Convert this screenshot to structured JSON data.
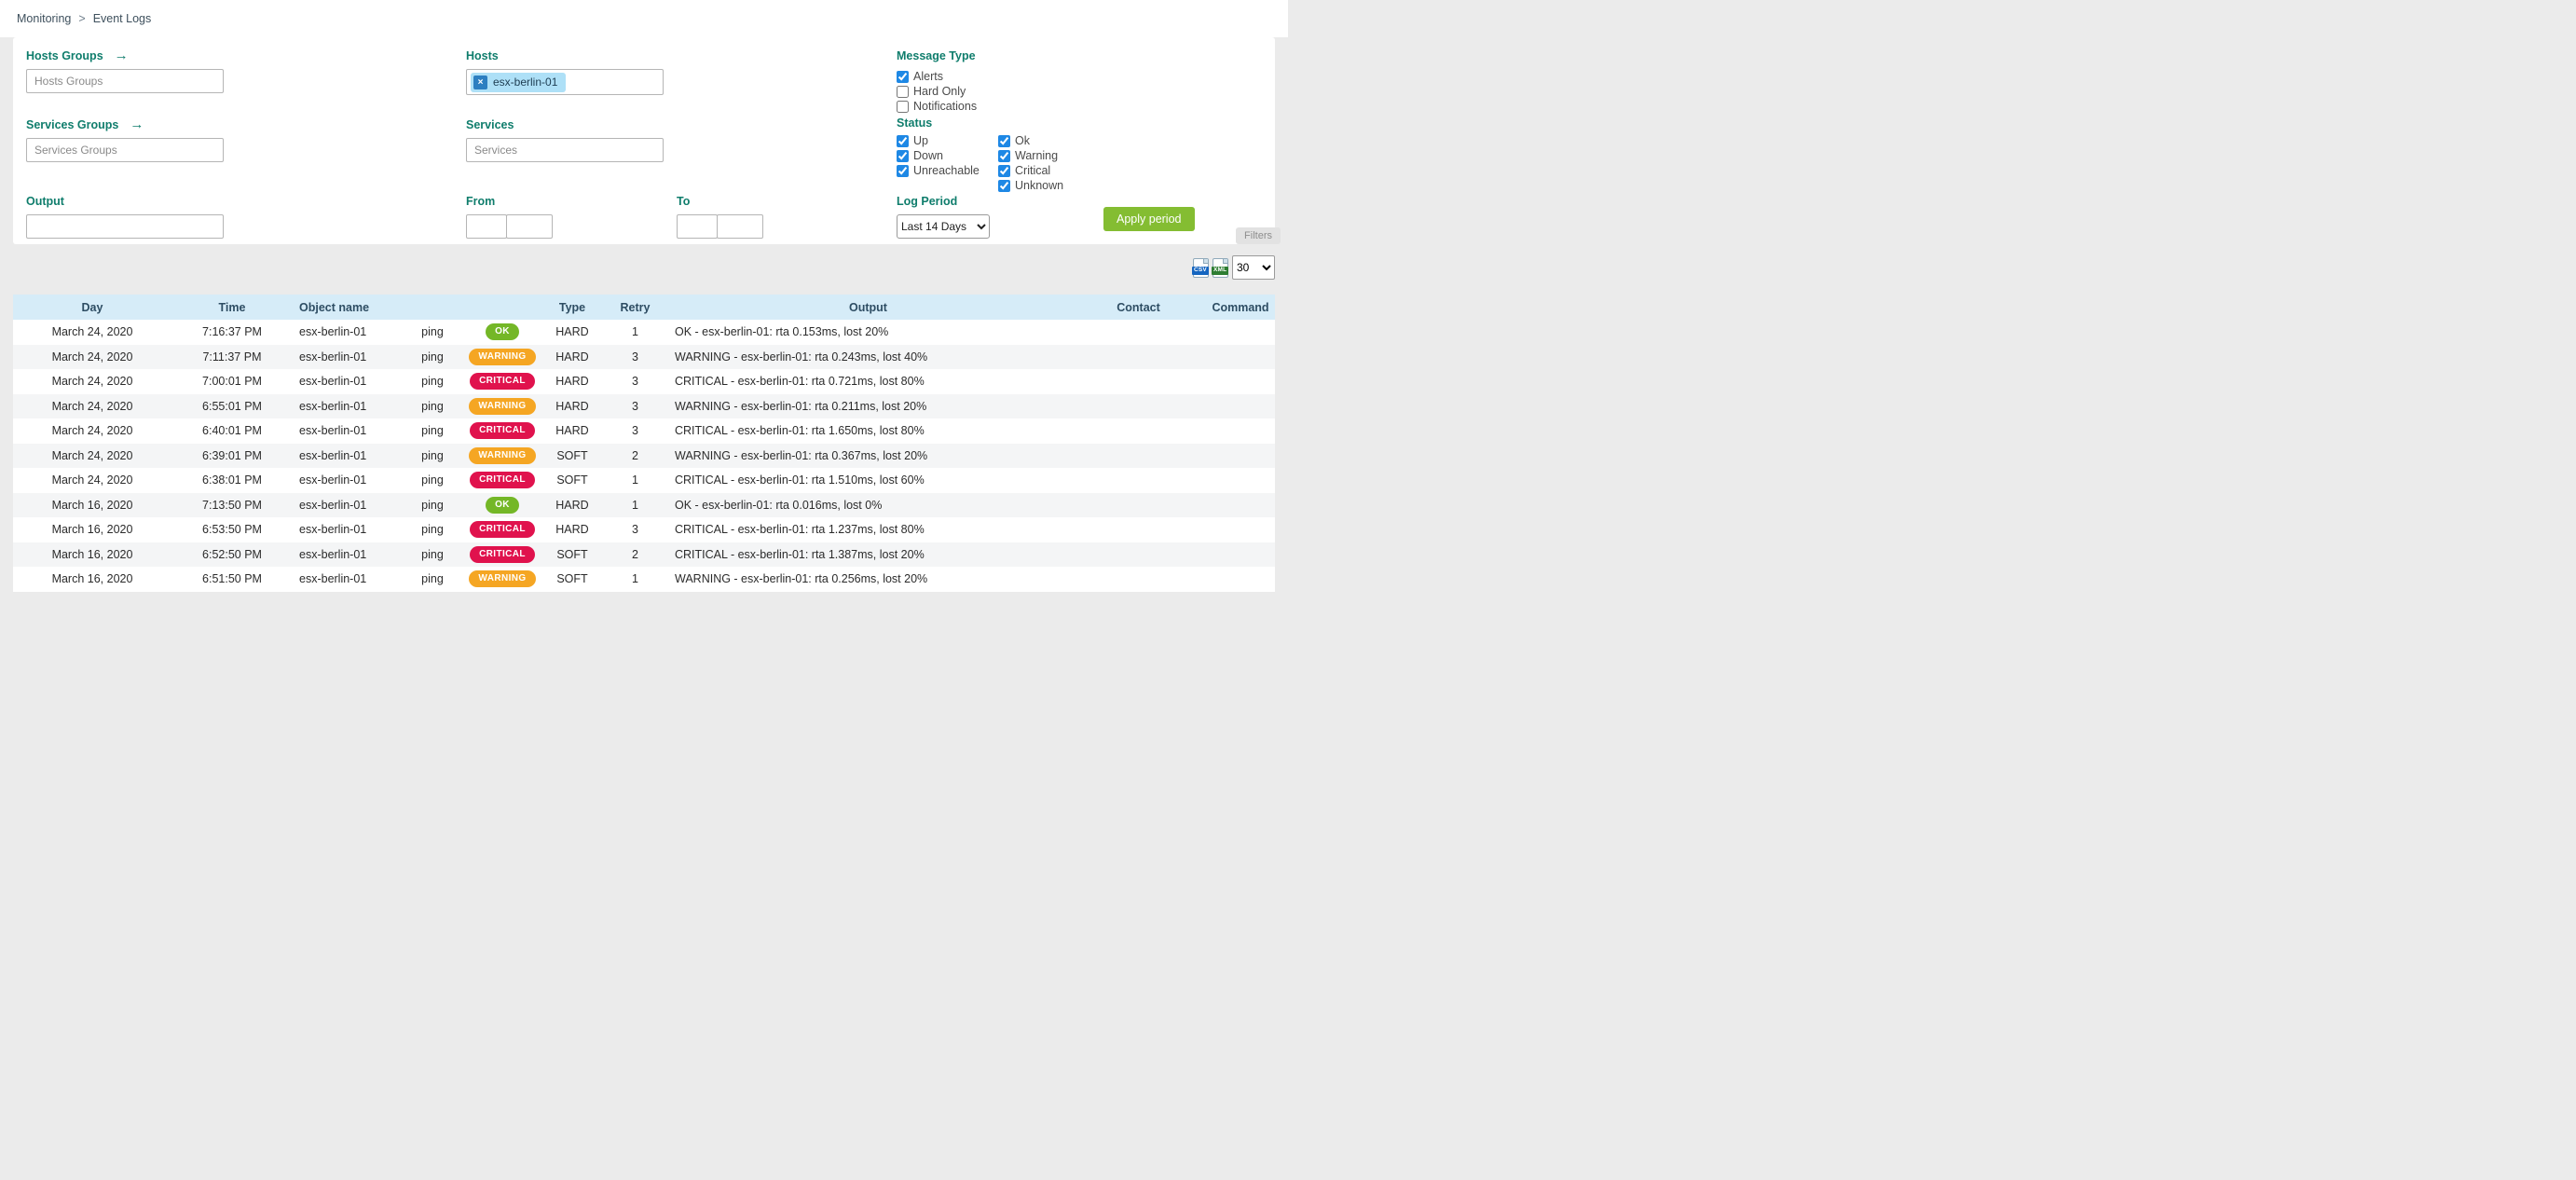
{
  "breadcrumb": {
    "items": [
      "Monitoring",
      "Event Logs"
    ],
    "separator": ">"
  },
  "filters": {
    "caption": "Filters",
    "hosts_groups": {
      "label": "Hosts Groups",
      "placeholder": "Hosts Groups"
    },
    "services_groups": {
      "label": "Services Groups",
      "placeholder": "Services Groups"
    },
    "hosts": {
      "label": "Hosts",
      "chips": [
        {
          "label": "esx-berlin-01",
          "remove_glyph": "×"
        }
      ]
    },
    "services": {
      "label": "Services",
      "placeholder": "Services"
    },
    "output": {
      "label": "Output",
      "value": ""
    },
    "from": {
      "label": "From",
      "date_value": "",
      "time_value": ""
    },
    "to": {
      "label": "To",
      "date_value": "",
      "time_value": ""
    },
    "message_type": {
      "label": "Message Type",
      "options": [
        {
          "label": "Alerts",
          "checked": true
        },
        {
          "label": "Hard Only",
          "checked": false
        },
        {
          "label": "Notifications",
          "checked": false
        }
      ]
    },
    "status": {
      "label": "Status",
      "col1": [
        {
          "label": "Up",
          "checked": true
        },
        {
          "label": "Down",
          "checked": true
        },
        {
          "label": "Unreachable",
          "checked": true
        }
      ],
      "col2": [
        {
          "label": "Ok",
          "checked": true
        },
        {
          "label": "Warning",
          "checked": true
        },
        {
          "label": "Critical",
          "checked": true
        },
        {
          "label": "Unknown",
          "checked": true
        }
      ]
    },
    "log_period": {
      "label": "Log Period",
      "selected": "Last 14 Days"
    },
    "apply_button": "Apply period"
  },
  "toolbar": {
    "export_csv": "CSV",
    "export_xml": "XML",
    "page_size": "30"
  },
  "table": {
    "columns": [
      "Day",
      "Time",
      "Object name",
      "",
      "",
      "Type",
      "Retry",
      "Output",
      "Contact",
      "Command"
    ],
    "rows": [
      {
        "day": "March 24, 2020",
        "time": "7:16:37 PM",
        "object": "esx-berlin-01",
        "service": "ping",
        "status": "OK",
        "type": "HARD",
        "retry": "1",
        "output": "OK - esx-berlin-01: rta 0.153ms, lost 20%",
        "contact": "",
        "command": ""
      },
      {
        "day": "March 24, 2020",
        "time": "7:11:37 PM",
        "object": "esx-berlin-01",
        "service": "ping",
        "status": "WARNING",
        "type": "HARD",
        "retry": "3",
        "output": "WARNING - esx-berlin-01: rta 0.243ms, lost 40%",
        "contact": "",
        "command": ""
      },
      {
        "day": "March 24, 2020",
        "time": "7:00:01 PM",
        "object": "esx-berlin-01",
        "service": "ping",
        "status": "CRITICAL",
        "type": "HARD",
        "retry": "3",
        "output": "CRITICAL - esx-berlin-01: rta 0.721ms, lost 80%",
        "contact": "",
        "command": ""
      },
      {
        "day": "March 24, 2020",
        "time": "6:55:01 PM",
        "object": "esx-berlin-01",
        "service": "ping",
        "status": "WARNING",
        "type": "HARD",
        "retry": "3",
        "output": "WARNING - esx-berlin-01: rta 0.211ms, lost 20%",
        "contact": "",
        "command": ""
      },
      {
        "day": "March 24, 2020",
        "time": "6:40:01 PM",
        "object": "esx-berlin-01",
        "service": "ping",
        "status": "CRITICAL",
        "type": "HARD",
        "retry": "3",
        "output": "CRITICAL - esx-berlin-01: rta 1.650ms, lost 80%",
        "contact": "",
        "command": ""
      },
      {
        "day": "March 24, 2020",
        "time": "6:39:01 PM",
        "object": "esx-berlin-01",
        "service": "ping",
        "status": "WARNING",
        "type": "SOFT",
        "retry": "2",
        "output": "WARNING - esx-berlin-01: rta 0.367ms, lost 20%",
        "contact": "",
        "command": ""
      },
      {
        "day": "March 24, 2020",
        "time": "6:38:01 PM",
        "object": "esx-berlin-01",
        "service": "ping",
        "status": "CRITICAL",
        "type": "SOFT",
        "retry": "1",
        "output": "CRITICAL - esx-berlin-01: rta 1.510ms, lost 60%",
        "contact": "",
        "command": ""
      },
      {
        "day": "March 16, 2020",
        "time": "7:13:50 PM",
        "object": "esx-berlin-01",
        "service": "ping",
        "status": "OK",
        "type": "HARD",
        "retry": "1",
        "output": "OK - esx-berlin-01: rta 0.016ms, lost 0%",
        "contact": "",
        "command": ""
      },
      {
        "day": "March 16, 2020",
        "time": "6:53:50 PM",
        "object": "esx-berlin-01",
        "service": "ping",
        "status": "CRITICAL",
        "type": "HARD",
        "retry": "3",
        "output": "CRITICAL - esx-berlin-01: rta 1.237ms, lost 80%",
        "contact": "",
        "command": ""
      },
      {
        "day": "March 16, 2020",
        "time": "6:52:50 PM",
        "object": "esx-berlin-01",
        "service": "ping",
        "status": "CRITICAL",
        "type": "SOFT",
        "retry": "2",
        "output": "CRITICAL - esx-berlin-01: rta 1.387ms, lost 20%",
        "contact": "",
        "command": ""
      },
      {
        "day": "March 16, 2020",
        "time": "6:51:50 PM",
        "object": "esx-berlin-01",
        "service": "ping",
        "status": "WARNING",
        "type": "SOFT",
        "retry": "1",
        "output": "WARNING - esx-berlin-01: rta 0.256ms, lost 20%",
        "contact": "",
        "command": ""
      }
    ]
  },
  "colors": {
    "accent_teal": "#0f7d6c",
    "checkbox_blue": "#1e88e5",
    "apply_green": "#84bd32",
    "table_header_bg": "#d6ecf8",
    "status": {
      "OK": "#74b727",
      "WARNING": "#f5a623",
      "CRITICAL": "#e0124d"
    }
  }
}
